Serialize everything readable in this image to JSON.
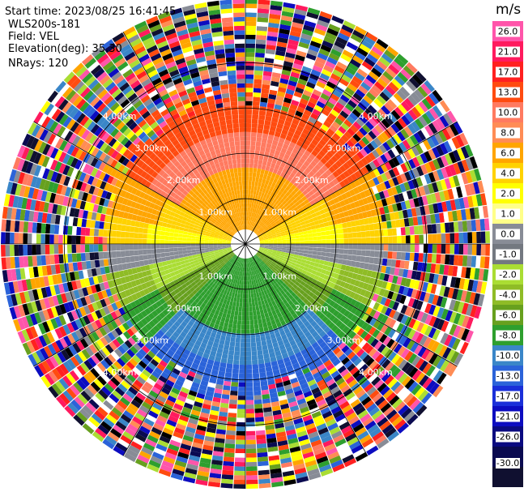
{
  "info": {
    "start_time": "Start time: 2023/08/25 16:41:45",
    "instrument": "WLS200s-181",
    "field": "Field: VEL",
    "elevation": "Elevation(deg): 35.30",
    "nrays": "NRays: 120"
  },
  "chart_data": {
    "type": "heatmap",
    "projection": "polar PPI",
    "field": "VEL",
    "units": "m/s",
    "ring_labels_km": [
      1.0,
      2.0,
      3.0,
      4.0
    ],
    "ring_label_text": [
      "1.00km",
      "2.00km",
      "3.00km",
      "4.00km"
    ],
    "max_range_km": 5.4,
    "nrays": 120,
    "colorbar": {
      "title": "m/s",
      "ticks": [
        "26.0",
        "21.0",
        "17.0",
        "13.0",
        "10.0",
        "8.0",
        "6.0",
        "4.0",
        "2.0",
        "1.0",
        "0.0",
        "-1.0",
        "-2.0",
        "-4.0",
        "-6.0",
        "-8.0",
        "-10.0",
        "-13.0",
        "-17.0",
        "-21.0",
        "-26.0",
        "-30.0"
      ],
      "colors": [
        "#ff55aa",
        "#ff1a5e",
        "#ff2020",
        "#ff4b10",
        "#ff7a60",
        "#ff8c55",
        "#ffa500",
        "#ffd200",
        "#ffff00",
        "#ffff88",
        "#888c96",
        "#737880",
        "#aadd33",
        "#8fbc26",
        "#67a01e",
        "#2e9f2e",
        "#3a86c8",
        "#2b63d9",
        "#1a2fd9",
        "#0c0cc0",
        "#0a0a80",
        "#0a0a50",
        "#101030"
      ]
    }
  }
}
